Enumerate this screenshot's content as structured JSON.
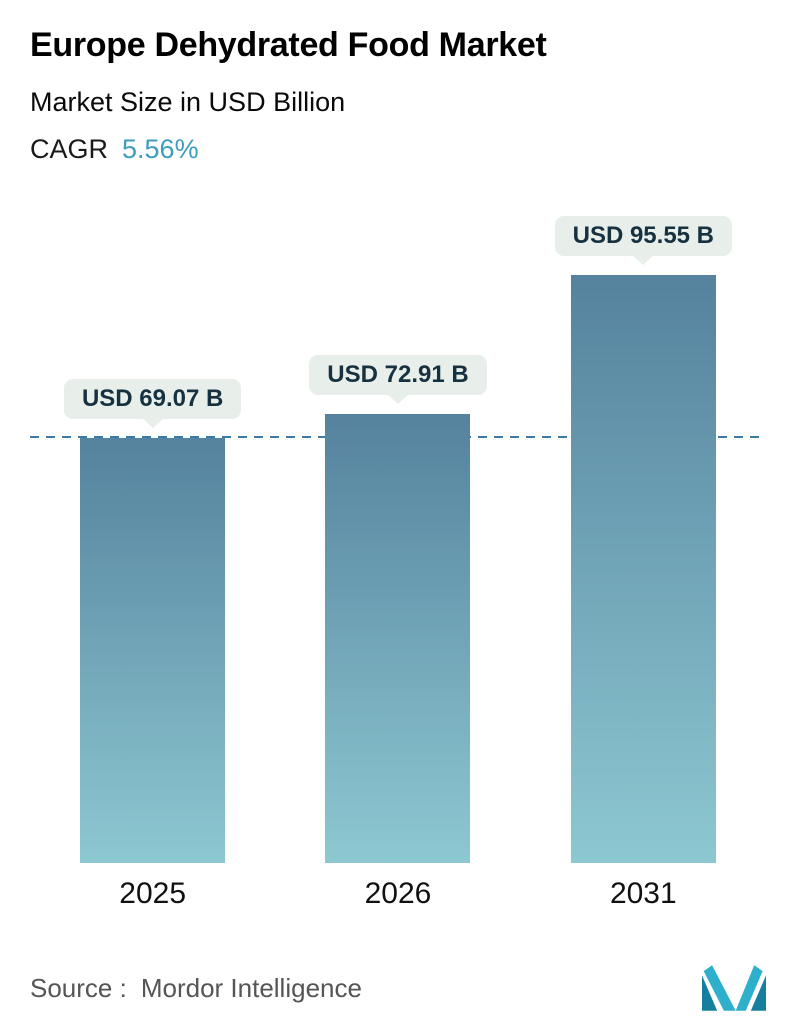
{
  "header": {
    "title": "Europe Dehydrated Food Market",
    "subtitle": "Market Size in USD Billion",
    "cagr_label": "CAGR",
    "cagr_value": "5.56%",
    "cagr_value_color": "#3e9cbe"
  },
  "chart_data": {
    "type": "bar",
    "title": "Europe Dehydrated Food Market",
    "ylabel": "Market Size in USD Billion",
    "categories": [
      "2025",
      "2026",
      "2031"
    ],
    "values": [
      69.07,
      72.91,
      95.55
    ],
    "value_labels": [
      "USD 69.07 B",
      "USD 72.91 B",
      "USD 95.55 B"
    ],
    "unit": "USD Billion",
    "cagr_percent": 5.56,
    "ylim": [
      0,
      95.55
    ],
    "grid": false,
    "legend": false,
    "reference_line_value": 69.07,
    "reference_line_style": "dashed",
    "reference_line_color": "#3a7ca6",
    "bar_gradient_top": "#55829e",
    "bar_gradient_bottom": "#8dc8d1",
    "callout_bg": "#e8efea"
  },
  "footer": {
    "source_label": "Source :",
    "source_value": "Mordor Intelligence",
    "logo": "mordor-intelligence-logo",
    "logo_color_dark": "#157f9d",
    "logo_color_light": "#2eb0cd"
  }
}
